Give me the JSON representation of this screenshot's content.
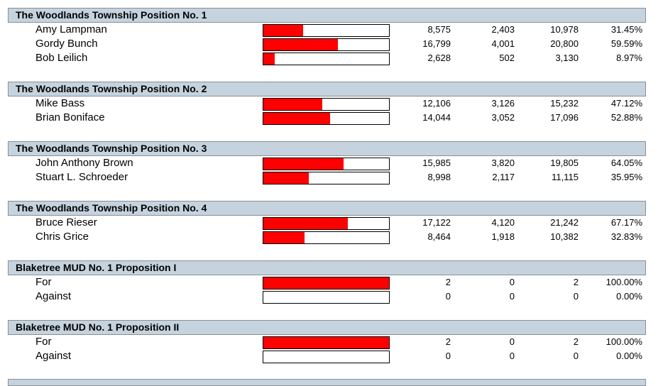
{
  "races": [
    {
      "title": "The Woodlands Township Position No. 1",
      "candidates": [
        {
          "name": "Amy Lampman",
          "c1": "8,575",
          "c2": "2,403",
          "total": "10,978",
          "pct": "31.45%",
          "share": 31.45
        },
        {
          "name": "Gordy Bunch",
          "c1": "16,799",
          "c2": "4,001",
          "total": "20,800",
          "pct": "59.59%",
          "share": 59.59
        },
        {
          "name": "Bob Leilich",
          "c1": "2,628",
          "c2": "502",
          "total": "3,130",
          "pct": "8.97%",
          "share": 8.97
        }
      ]
    },
    {
      "title": "The Woodlands Township Position No. 2",
      "candidates": [
        {
          "name": "Mike Bass",
          "c1": "12,106",
          "c2": "3,126",
          "total": "15,232",
          "pct": "47.12%",
          "share": 47.12
        },
        {
          "name": "Brian Boniface",
          "c1": "14,044",
          "c2": "3,052",
          "total": "17,096",
          "pct": "52.88%",
          "share": 52.88
        }
      ]
    },
    {
      "title": "The Woodlands Township Position No. 3",
      "candidates": [
        {
          "name": "John Anthony Brown",
          "c1": "15,985",
          "c2": "3,820",
          "total": "19,805",
          "pct": "64.05%",
          "share": 64.05
        },
        {
          "name": "Stuart L. Schroeder",
          "c1": "8,998",
          "c2": "2,117",
          "total": "11,115",
          "pct": "35.95%",
          "share": 35.95
        }
      ]
    },
    {
      "title": "The Woodlands Township Position No. 4",
      "candidates": [
        {
          "name": "Bruce Rieser",
          "c1": "17,122",
          "c2": "4,120",
          "total": "21,242",
          "pct": "67.17%",
          "share": 67.17
        },
        {
          "name": "Chris Grice",
          "c1": "8,464",
          "c2": "1,918",
          "total": "10,382",
          "pct": "32.83%",
          "share": 32.83
        }
      ]
    },
    {
      "title": "Blaketree MUD No. 1 Proposition I",
      "candidates": [
        {
          "name": "For",
          "c1": "2",
          "c2": "0",
          "total": "2",
          "pct": "100.00%",
          "share": 100
        },
        {
          "name": "Against",
          "c1": "0",
          "c2": "0",
          "total": "0",
          "pct": "0.00%",
          "share": 0
        }
      ]
    },
    {
      "title": "Blaketree MUD No. 1 Proposition II",
      "candidates": [
        {
          "name": "For",
          "c1": "2",
          "c2": "0",
          "total": "2",
          "pct": "100.00%",
          "share": 100
        },
        {
          "name": "Against",
          "c1": "0",
          "c2": "0",
          "total": "0",
          "pct": "0.00%",
          "share": 0
        }
      ]
    }
  ]
}
